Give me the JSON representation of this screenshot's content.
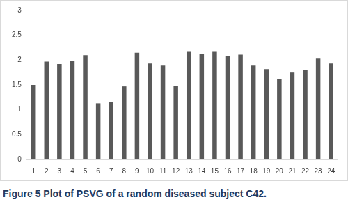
{
  "chart_data": {
    "type": "bar",
    "title": "Figure 5 Plot of PSVG of a random diseased subject C42.",
    "categories": [
      "1",
      "2",
      "3",
      "4",
      "5",
      "6",
      "7",
      "8",
      "9",
      "10",
      "11",
      "12",
      "13",
      "14",
      "15",
      "16",
      "17",
      "18",
      "19",
      "20",
      "21",
      "22",
      "23",
      "24"
    ],
    "values": [
      1.5,
      1.97,
      1.92,
      1.98,
      2.1,
      1.13,
      1.15,
      1.47,
      2.15,
      1.93,
      1.89,
      1.48,
      2.18,
      2.13,
      2.18,
      2.08,
      2.11,
      1.89,
      1.82,
      1.62,
      1.75,
      1.81,
      2.03,
      1.93
    ],
    "color": "#595959",
    "ylim": [
      0,
      3
    ],
    "yticks": [
      0,
      0.5,
      1,
      1.5,
      2,
      2.5,
      3
    ],
    "grid": false
  }
}
